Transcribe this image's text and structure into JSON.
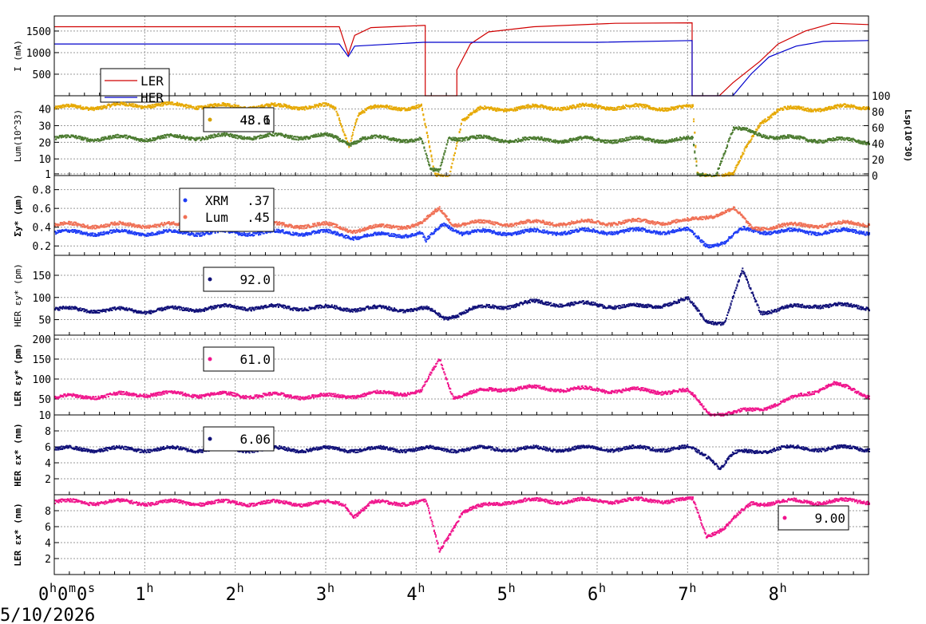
{
  "date": "5/10/2026",
  "chart_data": [
    {
      "type": "line",
      "id": "current",
      "ylabel": "I (mA)",
      "ylim": [
        0,
        1850
      ],
      "yticks": [
        500,
        1000,
        1500
      ],
      "legend": [
        {
          "name": "LER",
          "color": "#d00000"
        },
        {
          "name": "HER",
          "color": "#0000cc"
        }
      ],
      "series": [
        {
          "name": "LER",
          "color": "#d00000",
          "points": [
            [
              0,
              1600
            ],
            [
              3.15,
              1600
            ],
            [
              3.25,
              960
            ],
            [
              3.32,
              1400
            ],
            [
              3.5,
              1580
            ],
            [
              4.08,
              1630
            ],
            [
              4.1,
              1630
            ],
            [
              4.1,
              0
            ],
            [
              4.45,
              0
            ],
            [
              4.45,
              600
            ],
            [
              4.6,
              1200
            ],
            [
              4.8,
              1480
            ],
            [
              5.3,
              1600
            ],
            [
              6.2,
              1680
            ],
            [
              7.05,
              1690
            ],
            [
              7.05,
              0
            ],
            [
              7.35,
              0
            ],
            [
              7.5,
              300
            ],
            [
              7.8,
              800
            ],
            [
              8.0,
              1200
            ],
            [
              8.3,
              1500
            ],
            [
              8.6,
              1680
            ],
            [
              9.0,
              1650
            ]
          ]
        },
        {
          "name": "HER",
          "color": "#0000cc",
          "points": [
            [
              0,
              1200
            ],
            [
              3.15,
              1200
            ],
            [
              3.25,
              910
            ],
            [
              3.32,
              1150
            ],
            [
              4.08,
              1240
            ],
            [
              4.1,
              1240
            ],
            [
              4.1,
              1240
            ],
            [
              6.0,
              1240
            ],
            [
              7.05,
              1280
            ],
            [
              7.05,
              0
            ],
            [
              7.5,
              0
            ],
            [
              7.7,
              500
            ],
            [
              7.9,
              900
            ],
            [
              8.2,
              1150
            ],
            [
              8.5,
              1260
            ],
            [
              9.0,
              1280
            ]
          ]
        }
      ]
    },
    {
      "type": "scatter",
      "id": "lumi",
      "ylabel": "Lum(10^33)",
      "ylabel_right": "Lsp(10^30)",
      "ylim": [
        0,
        48
      ],
      "yticks": [
        1,
        10,
        20,
        30,
        40
      ],
      "yticks_right": [
        0,
        20,
        40,
        60,
        80,
        100
      ],
      "legend_values": [
        "48.1",
        "43.6"
      ],
      "legend_color": "#d4a000",
      "series": [
        {
          "name": "Lum",
          "color": "#e6a800",
          "points": [
            [
              0,
              41
            ],
            [
              1,
              43
            ],
            [
              2,
              42
            ],
            [
              3,
              42
            ],
            [
              3.1,
              40
            ],
            [
              3.25,
              19
            ],
            [
              3.35,
              38
            ],
            [
              3.5,
              41
            ],
            [
              4.05,
              42
            ],
            [
              4.2,
              0
            ],
            [
              4.35,
              0
            ],
            [
              4.5,
              34
            ],
            [
              4.7,
              40
            ],
            [
              5,
              41
            ],
            [
              6,
              42
            ],
            [
              7.05,
              41
            ],
            [
              7.1,
              1
            ],
            [
              7.5,
              1
            ],
            [
              7.65,
              18
            ],
            [
              7.8,
              33
            ],
            [
              8,
              40
            ],
            [
              9,
              42
            ]
          ]
        },
        {
          "name": "Lsp",
          "color": "#4a7a2e",
          "points": [
            [
              0,
              23
            ],
            [
              1,
              23
            ],
            [
              2,
              24
            ],
            [
              3,
              24
            ],
            [
              3.1,
              23
            ],
            [
              3.25,
              20
            ],
            [
              3.4,
              23
            ],
            [
              4.05,
              22
            ],
            [
              4.15,
              3
            ],
            [
              4.25,
              3
            ],
            [
              4.35,
              24
            ],
            [
              4.5,
              23
            ],
            [
              5,
              22
            ],
            [
              6,
              22
            ],
            [
              7.05,
              22
            ],
            [
              7.1,
              1
            ],
            [
              7.3,
              1
            ],
            [
              7.5,
              28
            ],
            [
              7.7,
              27
            ],
            [
              8,
              23
            ],
            [
              9,
              21
            ]
          ]
        }
      ]
    },
    {
      "type": "scatter",
      "id": "sigma",
      "ylabel": "Σy* (μm)",
      "ylim": [
        0.1,
        0.95
      ],
      "yticks": [
        0.2,
        0.4,
        0.6,
        0.8
      ],
      "legend": [
        {
          "name": "XRM",
          "value": ".37",
          "color": "#1f3df5"
        },
        {
          "name": "Lum",
          "value": ".45",
          "color": "#f07055"
        }
      ],
      "series": [
        {
          "name": "XRM",
          "color": "#1f3df5",
          "points": [
            [
              0,
              0.35
            ],
            [
              3,
              0.35
            ],
            [
              3.3,
              0.31
            ],
            [
              4.05,
              0.34
            ],
            [
              4.1,
              0.25
            ],
            [
              4.3,
              0.45
            ],
            [
              4.5,
              0.35
            ],
            [
              7,
              0.37
            ],
            [
              7.2,
              0.22
            ],
            [
              7.4,
              0.25
            ],
            [
              7.6,
              0.38
            ],
            [
              8,
              0.36
            ],
            [
              9,
              0.36
            ]
          ]
        },
        {
          "name": "Lum",
          "color": "#f07055",
          "points": [
            [
              0,
              0.43
            ],
            [
              3,
              0.43
            ],
            [
              3.3,
              0.38
            ],
            [
              4.05,
              0.44
            ],
            [
              4.25,
              0.6
            ],
            [
              4.4,
              0.45
            ],
            [
              5,
              0.45
            ],
            [
              7,
              0.47
            ],
            [
              7.5,
              0.6
            ],
            [
              7.7,
              0.4
            ],
            [
              8,
              0.42
            ],
            [
              9,
              0.45
            ]
          ]
        }
      ]
    },
    {
      "type": "scatter",
      "id": "her_eps_y",
      "ylabel": "HER εy* (pm)",
      "ylim": [
        15,
        195
      ],
      "yticks": [
        50,
        100,
        150
      ],
      "legend_values": [
        "92.0"
      ],
      "series": [
        {
          "name": "HER",
          "color": "#101078",
          "points": [
            [
              0,
              75
            ],
            [
              1,
              72
            ],
            [
              2,
              80
            ],
            [
              3,
              78
            ],
            [
              4.1,
              75
            ],
            [
              4.3,
              55
            ],
            [
              4.6,
              75
            ],
            [
              5.3,
              90
            ],
            [
              6,
              85
            ],
            [
              6.5,
              80
            ],
            [
              7.0,
              95
            ],
            [
              7.2,
              50
            ],
            [
              7.4,
              45
            ],
            [
              7.6,
              160
            ],
            [
              7.8,
              70
            ],
            [
              8.4,
              85
            ],
            [
              9,
              80
            ]
          ]
        }
      ]
    },
    {
      "type": "scatter",
      "id": "ler_eps_y",
      "ylabel": "LER εy* (pm)",
      "ylim": [
        10,
        210
      ],
      "yticks": [
        10,
        50,
        100,
        150,
        200
      ],
      "legend_values": [
        "61.0"
      ],
      "series": [
        {
          "name": "LER",
          "color": "#f0148c",
          "points": [
            [
              0,
              55
            ],
            [
              1,
              65
            ],
            [
              2,
              62
            ],
            [
              3,
              58
            ],
            [
              4.05,
              70
            ],
            [
              4.25,
              150
            ],
            [
              4.4,
              60
            ],
            [
              5,
              80
            ],
            [
              6,
              75
            ],
            [
              7,
              70
            ],
            [
              7.25,
              15
            ],
            [
              7.5,
              15
            ],
            [
              8,
              40
            ],
            [
              8.6,
              90
            ],
            [
              9,
              60
            ]
          ]
        }
      ]
    },
    {
      "type": "scatter",
      "id": "her_eps_x",
      "ylabel": "HER εx* (nm)",
      "ylim": [
        0,
        10
      ],
      "yticks": [
        2,
        4,
        6,
        8
      ],
      "legend_values": [
        "6.06"
      ],
      "series": [
        {
          "name": "HER",
          "color": "#101078",
          "points": [
            [
              0,
              5.8
            ],
            [
              4,
              5.8
            ],
            [
              7,
              5.9
            ],
            [
              7.25,
              4.8
            ],
            [
              7.35,
              3.5
            ],
            [
              7.5,
              5.2
            ],
            [
              8,
              5.9
            ],
            [
              9,
              5.9
            ]
          ]
        }
      ]
    },
    {
      "type": "scatter",
      "id": "ler_eps_x",
      "ylabel": "LER εx* (nm)",
      "ylim": [
        0,
        10
      ],
      "yticks": [
        2,
        4,
        6,
        8
      ],
      "legend_values": [
        "9.00"
      ],
      "series": [
        {
          "name": "LER",
          "color": "#f0148c",
          "points": [
            [
              0,
              9.2
            ],
            [
              3.2,
              9
            ],
            [
              3.3,
              7.5
            ],
            [
              3.5,
              9
            ],
            [
              4.1,
              9.2
            ],
            [
              4.25,
              3
            ],
            [
              4.5,
              8
            ],
            [
              5,
              9.3
            ],
            [
              7.05,
              9.4
            ],
            [
              7.2,
              5
            ],
            [
              7.4,
              6
            ],
            [
              7.7,
              9
            ],
            [
              8.0,
              9.2
            ],
            [
              9,
              9.3
            ]
          ]
        }
      ]
    }
  ],
  "x_axis": {
    "range_hours": [
      0,
      9
    ],
    "ticks": [
      {
        "h": 0,
        "label": "0",
        "unit": "h",
        "extra": "0m0s"
      },
      {
        "h": 1,
        "label": "1",
        "unit": "h"
      },
      {
        "h": 2,
        "label": "2",
        "unit": "h"
      },
      {
        "h": 3,
        "label": "3",
        "unit": "h"
      },
      {
        "h": 4,
        "label": "4",
        "unit": "h"
      },
      {
        "h": 5,
        "label": "5",
        "unit": "h"
      },
      {
        "h": 6,
        "label": "6",
        "unit": "h"
      },
      {
        "h": 7,
        "label": "7",
        "unit": "h"
      },
      {
        "h": 8,
        "label": "8",
        "unit": "h"
      }
    ]
  }
}
